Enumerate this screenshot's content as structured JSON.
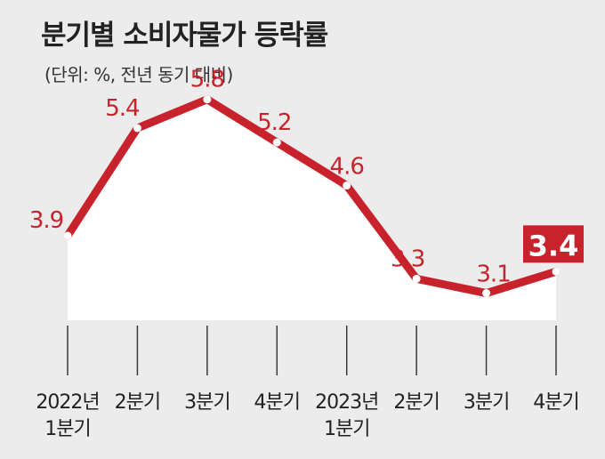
{
  "title": "분기별 소비자물가 등락률",
  "subtitle": "(단위: %, 전년 동기 대비)",
  "colors": {
    "line": "#c8232c",
    "label": "#c8232c",
    "highlight_bg": "#c8232c",
    "highlight_text": "#ffffff",
    "fill": "#ffffff",
    "background": "#ececec",
    "axis_text": "#222222"
  },
  "chart_data": {
    "type": "line",
    "title": "분기별 소비자물가 등락률",
    "subtitle": "(단위: %, 전년 동기 대비)",
    "categories": [
      "2022년\n1분기",
      "2분기",
      "3분기",
      "4분기",
      "2023년\n1분기",
      "2분기",
      "3분기",
      "4분기"
    ],
    "series": [
      {
        "values": [
          3.9,
          5.4,
          5.8,
          5.2,
          4.6,
          3.3,
          3.1,
          3.4
        ]
      }
    ],
    "data_labels": [
      "3.9",
      "5.4",
      "5.8",
      "5.2",
      "4.6",
      "3.3",
      "3.1",
      "3.4"
    ],
    "highlight_index": 7,
    "ylim": [
      1.0,
      6.6
    ],
    "grid": false,
    "legend": "none"
  }
}
